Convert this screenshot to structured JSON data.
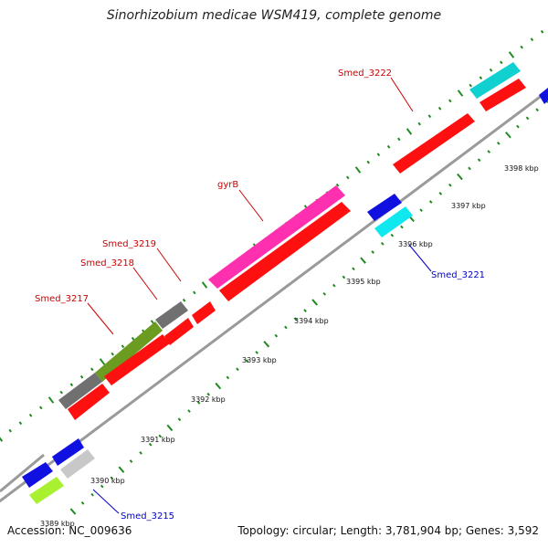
{
  "title": "Sinorhizobium medicae WSM419, complete genome",
  "accession": "Accession: NC_009636",
  "summary": "Topology: circular; Length: 3,781,904 bp; Genes: 3,592",
  "colors": {
    "backbone": "#9a9a9a",
    "dot_outer": "#1f8a1f",
    "dot_inner": "#1f8a1f",
    "label_forward": "#cc0000",
    "label_reverse": "#0000cc"
  },
  "scale_ticks": [
    "3389 kbp",
    "3390 kbp",
    "3391 kbp",
    "3392 kbp",
    "3393 kbp",
    "3394 kbp",
    "3395 kbp",
    "3396 kbp",
    "3397 kbp",
    "3398 kbp"
  ],
  "labels": {
    "smed_3222": "Smed_3222",
    "gyrB": "gyrB",
    "smed_3219": "Smed_3219",
    "smed_3218": "Smed_3218",
    "smed_3217": "Smed_3217",
    "smed_3221": "Smed_3221",
    "smed_3215": "Smed_3215"
  },
  "features": [
    {
      "name": "gene-smed-3215-cds",
      "color": "#ff1010",
      "strand": "reverse"
    },
    {
      "name": "gene-3216-blue",
      "color": "#1010e0"
    },
    {
      "name": "gene-3216-silver",
      "color": "#c8c8c8"
    },
    {
      "name": "gene-3216-lime",
      "color": "#a8f030"
    },
    {
      "name": "gene-3217-gray",
      "color": "#707070"
    },
    {
      "name": "gene-3218-olive",
      "color": "#6b9b20"
    },
    {
      "name": "gene-3219-gray",
      "color": "#707070"
    },
    {
      "name": "gene-gyrB-magenta",
      "color": "#ff30b0"
    },
    {
      "name": "gene-3221-cyan",
      "color": "#10e8f0"
    },
    {
      "name": "gene-3221-blue",
      "color": "#1010e0"
    },
    {
      "name": "gene-3222-cyan",
      "color": "#10d0d0"
    },
    {
      "name": "gene-right-blue",
      "color": "#1010e0"
    }
  ]
}
